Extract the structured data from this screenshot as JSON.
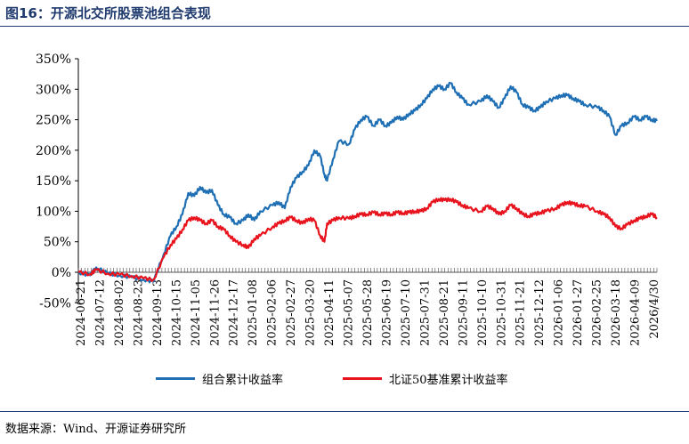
{
  "figure": {
    "title": "图16：开源北交所股票池组合表现",
    "source": "数据来源：Wind、开源证券研究所"
  },
  "chart_data": {
    "type": "line",
    "title": "",
    "xlabel": "",
    "ylabel": "",
    "ylim": [
      -50,
      350
    ],
    "yticks": [
      -50,
      0,
      50,
      100,
      150,
      200,
      250,
      300,
      350
    ],
    "ytick_labels": [
      "-50%",
      "0%",
      "50%",
      "100%",
      "150%",
      "200%",
      "250%",
      "300%",
      "350%"
    ],
    "x_start": "2024-06-21",
    "x_end": "2026-05-06",
    "x_tick_labels": [
      "2024-06-21",
      "2024-07-12",
      "2024-08-02",
      "2024-08-23",
      "2024-09-13",
      "2024-10-15",
      "2024-11-05",
      "2024-11-26",
      "2024-12-17",
      "2025-01-08",
      "2025-02-06",
      "2025-02-27",
      "2025-03-20",
      "2025-04-11",
      "2025-05-07",
      "2025-05-28",
      "2025-06-19",
      "2025-07-10",
      "2025-07-31",
      "2025-08-21",
      "2025-09-11",
      "2025-10-10",
      "2025-10-31",
      "2025-11-21",
      "2025-12-12",
      "2026-01-06",
      "2026-01-27",
      "2026-02-25",
      "2026-03-18",
      "2026-04-09",
      "2026/4/30"
    ],
    "grid": false,
    "legend_position": "bottom",
    "series": [
      {
        "name": "组合累计收益率",
        "color": "#1f6fb5",
        "x": [
          "2024-06-21",
          "2024-07-05",
          "2024-07-12",
          "2024-07-26",
          "2024-08-09",
          "2024-08-23",
          "2024-09-06",
          "2024-09-18",
          "2024-09-30",
          "2024-10-08",
          "2024-10-15",
          "2024-10-22",
          "2024-10-29",
          "2024-11-05",
          "2024-11-12",
          "2024-11-19",
          "2024-11-26",
          "2024-12-03",
          "2024-12-10",
          "2024-12-17",
          "2024-12-24",
          "2025-01-02",
          "2025-01-08",
          "2025-01-15",
          "2025-01-22",
          "2025-02-06",
          "2025-02-13",
          "2025-02-20",
          "2025-02-27",
          "2025-03-06",
          "2025-03-13",
          "2025-03-20",
          "2025-03-27",
          "2025-04-03",
          "2025-04-08",
          "2025-04-11",
          "2025-04-18",
          "2025-04-25",
          "2025-05-07",
          "2025-05-14",
          "2025-05-21",
          "2025-05-28",
          "2025-06-05",
          "2025-06-12",
          "2025-06-19",
          "2025-06-26",
          "2025-07-03",
          "2025-07-10",
          "2025-07-17",
          "2025-07-24",
          "2025-07-31",
          "2025-08-07",
          "2025-08-14",
          "2025-08-21",
          "2025-08-28",
          "2025-09-04",
          "2025-09-11",
          "2025-09-18",
          "2025-09-25",
          "2025-10-10",
          "2025-10-17",
          "2025-10-24",
          "2025-10-31",
          "2025-11-07",
          "2025-11-14",
          "2025-11-21",
          "2025-11-28",
          "2025-12-05",
          "2025-12-12",
          "2025-12-19",
          "2025-12-26",
          "2026-01-06",
          "2026-01-13",
          "2026-01-20",
          "2026-01-27",
          "2026-02-03",
          "2026-02-10",
          "2026-02-25",
          "2026-03-04",
          "2026-03-11",
          "2026-03-18",
          "2026-03-25",
          "2026-04-01",
          "2026-04-09",
          "2026-04-16",
          "2026-04-23",
          "2026-04-30",
          "2026-05-06"
        ],
        "y": [
          0,
          -5,
          8,
          -2,
          -5,
          -8,
          -12,
          -15,
          30,
          60,
          75,
          95,
          130,
          125,
          140,
          130,
          135,
          110,
          95,
          90,
          80,
          85,
          95,
          85,
          100,
          110,
          115,
          105,
          140,
          155,
          165,
          175,
          200,
          190,
          160,
          150,
          185,
          215,
          210,
          235,
          250,
          255,
          240,
          250,
          240,
          245,
          255,
          250,
          260,
          265,
          275,
          285,
          300,
          305,
          300,
          310,
          295,
          285,
          275,
          280,
          290,
          280,
          270,
          285,
          305,
          295,
          275,
          270,
          265,
          270,
          280,
          285,
          290,
          290,
          285,
          280,
          275,
          270,
          265,
          255,
          225,
          240,
          245,
          255,
          250,
          255,
          250,
          248
        ]
      },
      {
        "name": "北证50基准累计收益率",
        "color": "#e8131d",
        "x": [
          "2024-06-21",
          "2024-07-05",
          "2024-07-12",
          "2024-07-26",
          "2024-08-09",
          "2024-08-23",
          "2024-09-06",
          "2024-09-18",
          "2024-09-30",
          "2024-10-08",
          "2024-10-15",
          "2024-10-22",
          "2024-10-29",
          "2024-11-05",
          "2024-11-12",
          "2024-11-19",
          "2024-11-26",
          "2024-12-03",
          "2024-12-10",
          "2024-12-17",
          "2024-12-24",
          "2025-01-02",
          "2025-01-08",
          "2025-01-15",
          "2025-01-22",
          "2025-02-06",
          "2025-02-13",
          "2025-02-20",
          "2025-02-27",
          "2025-03-06",
          "2025-03-13",
          "2025-03-20",
          "2025-03-27",
          "2025-04-03",
          "2025-04-08",
          "2025-04-11",
          "2025-04-18",
          "2025-04-25",
          "2025-05-07",
          "2025-05-14",
          "2025-05-21",
          "2025-05-28",
          "2025-06-05",
          "2025-06-12",
          "2025-06-19",
          "2025-06-26",
          "2025-07-03",
          "2025-07-10",
          "2025-07-17",
          "2025-07-24",
          "2025-07-31",
          "2025-08-07",
          "2025-08-14",
          "2025-08-21",
          "2025-08-28",
          "2025-09-04",
          "2025-09-11",
          "2025-09-18",
          "2025-09-25",
          "2025-10-10",
          "2025-10-17",
          "2025-10-24",
          "2025-10-31",
          "2025-11-07",
          "2025-11-14",
          "2025-11-21",
          "2025-11-28",
          "2025-12-05",
          "2025-12-12",
          "2025-12-19",
          "2025-12-26",
          "2026-01-06",
          "2026-01-13",
          "2026-01-20",
          "2026-01-27",
          "2026-02-03",
          "2026-02-10",
          "2026-02-25",
          "2026-03-04",
          "2026-03-11",
          "2026-03-18",
          "2026-03-25",
          "2026-04-01",
          "2026-04-09",
          "2026-04-16",
          "2026-04-23",
          "2026-04-30",
          "2026-05-06"
        ],
        "y": [
          0,
          -3,
          4,
          -2,
          -4,
          -6,
          -10,
          -12,
          25,
          45,
          55,
          70,
          85,
          90,
          85,
          80,
          85,
          75,
          70,
          60,
          50,
          45,
          40,
          55,
          60,
          75,
          80,
          85,
          90,
          85,
          80,
          88,
          85,
          60,
          50,
          80,
          85,
          90,
          88,
          92,
          95,
          95,
          98,
          95,
          96,
          95,
          98,
          97,
          98,
          100,
          100,
          105,
          115,
          120,
          118,
          120,
          115,
          110,
          105,
          100,
          108,
          105,
          95,
          100,
          110,
          105,
          95,
          92,
          95,
          98,
          100,
          105,
          110,
          115,
          112,
          110,
          108,
          100,
          95,
          90,
          75,
          72,
          78,
          85,
          88,
          92,
          95,
          90
        ]
      }
    ]
  }
}
